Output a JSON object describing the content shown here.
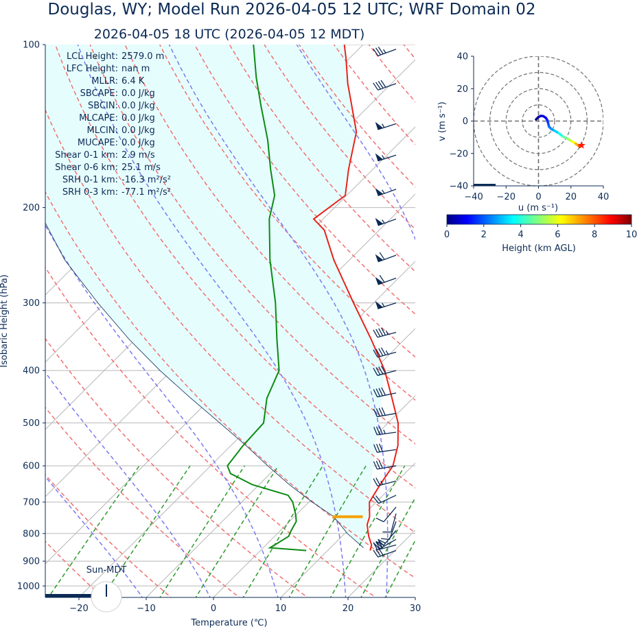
{
  "title": "Douglas, WY; Model Run 2026-04-05 12 UTC; WRF Domain 02",
  "subtitle": "2026-04-05 18 UTC  (2026-04-05 12 MDT)",
  "colors": {
    "text": "#0b2a55",
    "temperature": "#e8221a",
    "dewpoint": "#0a8a12",
    "parcel": "#0b2a55",
    "cape_fill": "#e6fdfd",
    "dry_adiabat": "#f07070",
    "moist_adiabat": "#7a7af0",
    "mixing_ratio": "#2a9a2a",
    "isotherm": "#b8b8b8",
    "lcl_marker": "#f5a000",
    "barb": "#0b2a55"
  },
  "indices": [
    {
      "label": "LCL Height:",
      "value": "2579.0 m"
    },
    {
      "label": "LFC Height:",
      "value": "nan m"
    },
    {
      "label": "MLLR:",
      "value": "6.4 K"
    },
    {
      "label": "SBCAPE:",
      "value": "0.0 J/kg"
    },
    {
      "label": "SBCIN:",
      "value": "0.0 J/kg"
    },
    {
      "label": "MLCAPE:",
      "value": "0.0 J/kg"
    },
    {
      "label": "MLCIN:",
      "value": "0.0 J/kg"
    },
    {
      "label": "MUCAPE:",
      "value": "0.0 J/kg"
    },
    {
      "label": "Shear 0-1 km:",
      "value": "2.9 m/s"
    },
    {
      "label": "Shear 0-6 km:",
      "value": "25.1 m/s"
    },
    {
      "label": "SRH 0-1 km:",
      "value": "-16.3 m²/s²"
    },
    {
      "label": "SRH 0-3 km:",
      "value": "-77.1 m²/s²"
    }
  ],
  "sun_label": "Sun-MDT",
  "chart_data": [
    {
      "type": "line",
      "name": "skew-t",
      "xlabel": "Temperature (℃)",
      "ylabel": "Isobaric Height (hPa)",
      "xlim": [
        -25,
        30
      ],
      "ylim": [
        1050,
        100
      ],
      "y_scale": "log",
      "skew": "45 degrees",
      "xticks": [
        -20,
        -10,
        0,
        10,
        20,
        30
      ],
      "yticks": [
        100,
        200,
        300,
        400,
        500,
        600,
        700,
        800,
        900,
        1000
      ],
      "grid": true,
      "series": [
        {
          "key": "temperature",
          "points": [
            [
              860,
              16.3
            ],
            [
              840,
              15.7
            ],
            [
              810,
              14.0
            ],
            [
              790,
              13.0
            ],
            [
              770,
              12.0
            ],
            [
              745,
              11.2
            ],
            [
              720,
              10.0
            ],
            [
              700,
              9.0
            ],
            [
              650,
              8.0
            ],
            [
              600,
              7.1
            ],
            [
              550,
              4.8
            ],
            [
              500,
              1.5
            ],
            [
              450,
              -3.1
            ],
            [
              400,
              -8.3
            ],
            [
              350,
              -15.0
            ],
            [
              300,
              -23.0
            ],
            [
              250,
              -32.3
            ],
            [
              220,
              -38.2
            ],
            [
              210,
              -41.4
            ],
            [
              190,
              -40.2
            ],
            [
              170,
              -43.6
            ],
            [
              145,
              -48.0
            ],
            [
              130,
              -52.5
            ],
            [
              118,
              -56.5
            ],
            [
              106,
              -60.5
            ],
            [
              100,
              -62.8
            ]
          ]
        },
        {
          "key": "dewpoint",
          "points": [
            [
              860,
              6.8
            ],
            [
              850,
              1.0
            ],
            [
              840,
              1.3
            ],
            [
              810,
              2.1
            ],
            [
              790,
              1.6
            ],
            [
              760,
              1.0
            ],
            [
              740,
              0.0
            ],
            [
              700,
              -2.4
            ],
            [
              680,
              -4.1
            ],
            [
              650,
              -11.0
            ],
            [
              620,
              -15.9
            ],
            [
              600,
              -17.5
            ],
            [
              550,
              -18.2
            ],
            [
              500,
              -18.5
            ],
            [
              450,
              -21.7
            ],
            [
              400,
              -24.0
            ],
            [
              350,
              -29.0
            ],
            [
              300,
              -34.6
            ],
            [
              250,
              -41.8
            ],
            [
              210,
              -48.0
            ],
            [
              190,
              -50.7
            ],
            [
              170,
              -55.2
            ],
            [
              150,
              -60.0
            ],
            [
              130,
              -66.0
            ],
            [
              115,
              -71.0
            ],
            [
              100,
              -76.3
            ]
          ]
        },
        {
          "key": "parcel",
          "points": [
            [
              850,
              14.9
            ],
            [
              800,
              10.4
            ],
            [
              745,
              5.9
            ],
            [
              700,
              0.5
            ],
            [
              650,
              -5.5
            ],
            [
              600,
              -11.5
            ],
            [
              550,
              -17.8
            ],
            [
              500,
              -25.0
            ],
            [
              450,
              -33.0
            ],
            [
              400,
              -41.7
            ],
            [
              350,
              -51.0
            ],
            [
              300,
              -61.0
            ],
            [
              250,
              -72.3
            ],
            [
              200,
              -84.2
            ],
            [
              170,
              -91.6
            ]
          ]
        }
      ],
      "lcl": {
        "pressure": 745,
        "temperature": 5.9
      },
      "wind_barbs": [
        {
          "p": 860,
          "dir": 250,
          "kt": 32
        },
        {
          "p": 840,
          "dir": 255,
          "kt": 30
        },
        {
          "p": 820,
          "dir": 240,
          "kt": 28
        },
        {
          "p": 790,
          "dir": 220,
          "kt": 20
        },
        {
          "p": 760,
          "dir": 200,
          "kt": 12
        },
        {
          "p": 735,
          "dir": 195,
          "kt": 10
        },
        {
          "p": 715,
          "dir": 220,
          "kt": 12
        },
        {
          "p": 680,
          "dir": 245,
          "kt": 20
        },
        {
          "p": 640,
          "dir": 255,
          "kt": 25
        },
        {
          "p": 600,
          "dir": 260,
          "kt": 30
        },
        {
          "p": 560,
          "dir": 262,
          "kt": 32
        },
        {
          "p": 520,
          "dir": 262,
          "kt": 35
        },
        {
          "p": 480,
          "dir": 260,
          "kt": 38
        },
        {
          "p": 440,
          "dir": 258,
          "kt": 40
        },
        {
          "p": 400,
          "dir": 255,
          "kt": 42
        },
        {
          "p": 370,
          "dir": 255,
          "kt": 45
        },
        {
          "p": 340,
          "dir": 255,
          "kt": 45
        },
        {
          "p": 300,
          "dir": 252,
          "kt": 55
        },
        {
          "p": 270,
          "dir": 250,
          "kt": 60
        },
        {
          "p": 245,
          "dir": 250,
          "kt": 60
        },
        {
          "p": 210,
          "dir": 250,
          "kt": 55
        },
        {
          "p": 185,
          "dir": 250,
          "kt": 55
        },
        {
          "p": 160,
          "dir": 252,
          "kt": 55
        },
        {
          "p": 140,
          "dir": 252,
          "kt": 55
        },
        {
          "p": 118,
          "dir": 250,
          "kt": 40
        },
        {
          "p": 102,
          "dir": 250,
          "kt": 35
        }
      ]
    },
    {
      "type": "line",
      "name": "hodograph",
      "xlabel": "u (m s⁻¹)",
      "ylabel": "v (m s⁻¹)",
      "xlim": [
        -40,
        40
      ],
      "ylim": [
        -40,
        40
      ],
      "xticks": [
        -40,
        -20,
        0,
        20,
        40
      ],
      "yticks": [
        -40,
        -20,
        0,
        20,
        40
      ],
      "rings": [
        10,
        20,
        30,
        40
      ],
      "colorbar": {
        "label": "Height (km AGL)",
        "min": 0,
        "max": 10,
        "ticks": [
          0,
          2,
          4,
          6,
          8,
          10
        ],
        "colormap": "jet"
      },
      "points": [
        {
          "u": -1.5,
          "v": 1.0,
          "h": 0.0
        },
        {
          "u": 0.0,
          "v": 2.5,
          "h": 0.3
        },
        {
          "u": 1.5,
          "v": 3.2,
          "h": 0.6
        },
        {
          "u": 3.0,
          "v": 3.0,
          "h": 0.9
        },
        {
          "u": 4.5,
          "v": 2.0,
          "h": 1.2
        },
        {
          "u": 5.5,
          "v": 0.5,
          "h": 1.5
        },
        {
          "u": 6.0,
          "v": -1.5,
          "h": 1.8
        },
        {
          "u": 6.5,
          "v": -3.5,
          "h": 2.2
        },
        {
          "u": 8.0,
          "v": -5.0,
          "h": 2.6
        },
        {
          "u": 10.0,
          "v": -6.0,
          "h": 3.0
        },
        {
          "u": 12.5,
          "v": -7.5,
          "h": 3.6
        },
        {
          "u": 15.0,
          "v": -9.5,
          "h": 4.3
        },
        {
          "u": 18.0,
          "v": -11.0,
          "h": 5.0
        },
        {
          "u": 20.5,
          "v": -12.5,
          "h": 5.8
        },
        {
          "u": 23.0,
          "v": -14.0,
          "h": 6.6
        },
        {
          "u": 25.0,
          "v": -15.5,
          "h": 7.5
        },
        {
          "u": 26.5,
          "v": -15.0,
          "h": 8.5
        }
      ]
    }
  ]
}
